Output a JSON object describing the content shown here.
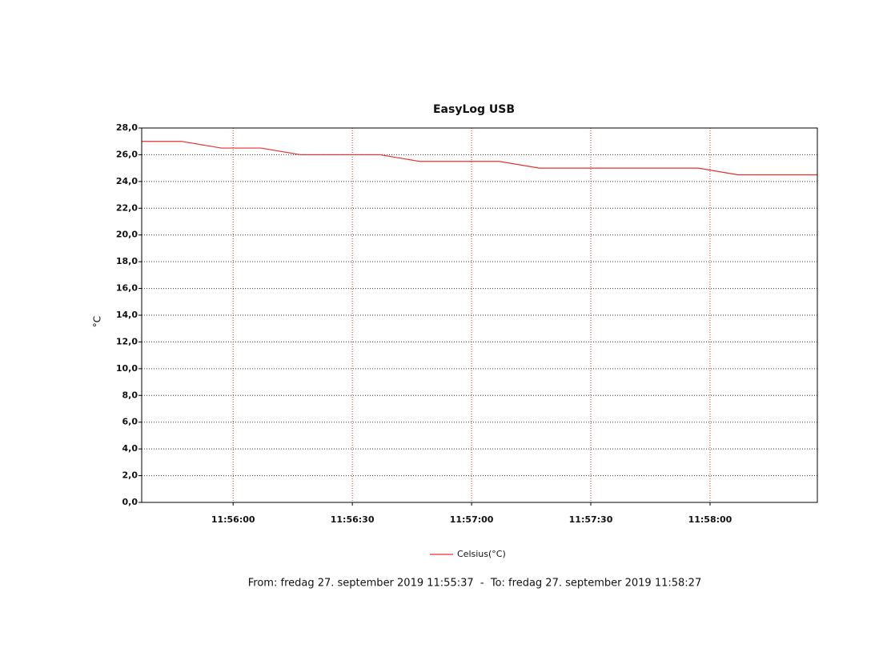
{
  "chart_data": {
    "type": "line",
    "title": "EasyLog USB",
    "y_label": "°C",
    "x": [
      "11:55:37",
      "11:55:47",
      "11:55:57",
      "11:56:07",
      "11:56:17",
      "11:56:27",
      "11:56:37",
      "11:56:47",
      "11:56:57",
      "11:57:07",
      "11:57:17",
      "11:57:27",
      "11:57:37",
      "11:57:47",
      "11:57:57",
      "11:58:07",
      "11:58:17",
      "11:58:27"
    ],
    "series": [
      {
        "name": "Celsius(°C)",
        "color": "#e8302a",
        "values": [
          27.0,
          27.0,
          26.5,
          26.5,
          26.0,
          26.0,
          26.0,
          25.5,
          25.5,
          25.5,
          25.0,
          25.0,
          25.0,
          25.0,
          25.0,
          24.5,
          24.5,
          24.5
        ]
      }
    ],
    "xlim": [
      "11:55:37",
      "11:58:27"
    ],
    "xticks": [
      "11:56:00",
      "11:56:30",
      "11:57:00",
      "11:57:30",
      "11:58:00"
    ],
    "ylim": [
      0,
      28
    ],
    "yticks": [
      {
        "value": 0,
        "label": "0,0"
      },
      {
        "value": 2,
        "label": "2,0"
      },
      {
        "value": 4,
        "label": "4,0"
      },
      {
        "value": 6,
        "label": "6,0"
      },
      {
        "value": 8,
        "label": "8,0"
      },
      {
        "value": 10,
        "label": "10,0"
      },
      {
        "value": 12,
        "label": "12,0"
      },
      {
        "value": 14,
        "label": "14,0"
      },
      {
        "value": 16,
        "label": "16,0"
      },
      {
        "value": 18,
        "label": "18,0"
      },
      {
        "value": 20,
        "label": "20,0"
      },
      {
        "value": 22,
        "label": "22,0"
      },
      {
        "value": 24,
        "label": "24,0"
      },
      {
        "value": 26,
        "label": "26,0"
      },
      {
        "value": 28,
        "label": "28,0"
      }
    ],
    "grid": true,
    "x_grid_color": "#d03030",
    "y_grid_color": "#333333",
    "legend": "bottom",
    "footer": "From: fredag 27. september 2019 11:55:37  -  To: fredag 27. september 2019 11:58:27"
  }
}
